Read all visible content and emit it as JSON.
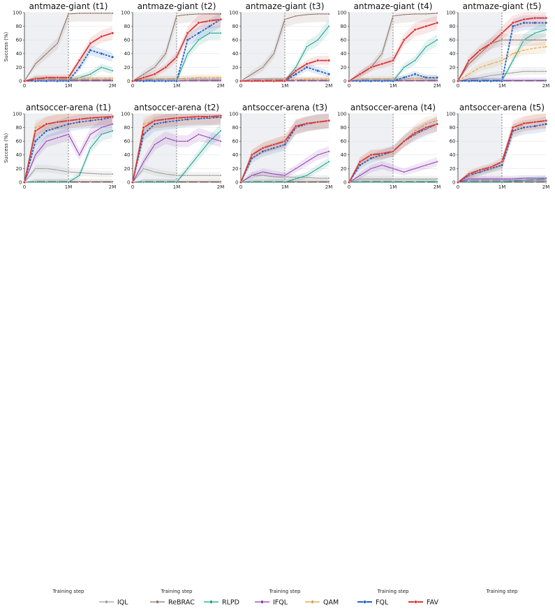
{
  "figure": {
    "ylabel": "Success (%)",
    "xlabel": "Training step",
    "x_ticks": [
      "0",
      "1M",
      "2M"
    ],
    "y_ticks": [
      "0",
      "20",
      "40",
      "60",
      "80",
      "100"
    ]
  },
  "legend": [
    {
      "name": "IQL",
      "color": "#9a9a9a",
      "marker": "dot"
    },
    {
      "name": "ReBRAC",
      "color": "#8c6d62",
      "marker": "square"
    },
    {
      "name": "RLPD",
      "color": "#159a8a",
      "marker": "dot"
    },
    {
      "name": "IFQL",
      "color": "#8a35b0",
      "marker": "triangle"
    },
    {
      "name": "QAM",
      "color": "#e09a3a",
      "marker": "dash"
    },
    {
      "name": "FQL",
      "color": "#1f63c4",
      "marker": "triangle-down"
    },
    {
      "name": "FAV",
      "color": "#d63a3a",
      "marker": "diamond"
    }
  ],
  "chart_data": {
    "type": "line",
    "x": [
      0,
      0.25,
      0.5,
      0.75,
      1.0,
      1.25,
      1.5,
      1.75,
      2.0
    ],
    "x_unit": "M steps",
    "ylim": [
      0,
      100
    ],
    "xlim": [
      0,
      2
    ],
    "panels": [
      {
        "title": "antmaze-giant (t1)",
        "series": {
          "IQL": [
            0,
            5,
            3,
            2,
            2,
            2,
            2,
            2,
            2
          ],
          "ReBRAC": [
            0,
            25,
            40,
            55,
            98,
            99,
            99,
            99,
            99
          ],
          "RLPD": [
            0,
            0,
            0,
            0,
            0,
            5,
            10,
            20,
            15
          ],
          "IFQL": [
            0,
            0,
            0,
            0,
            0,
            1,
            1,
            1,
            1
          ],
          "QAM": [
            0,
            2,
            3,
            3,
            3,
            4,
            4,
            4,
            4
          ],
          "FQL": [
            0,
            0,
            0,
            0,
            0,
            20,
            45,
            40,
            35
          ],
          "FAV": [
            0,
            3,
            5,
            5,
            5,
            30,
            55,
            65,
            70
          ]
        }
      },
      {
        "title": "antmaze-giant (t2)",
        "series": {
          "IQL": [
            0,
            1,
            2,
            3,
            3,
            3,
            3,
            3,
            3
          ],
          "ReBRAC": [
            0,
            10,
            20,
            40,
            95,
            97,
            98,
            98,
            98
          ],
          "RLPD": [
            0,
            0,
            0,
            0,
            0,
            40,
            60,
            70,
            70
          ],
          "IFQL": [
            0,
            0,
            0,
            0,
            0,
            1,
            1,
            1,
            1
          ],
          "QAM": [
            0,
            2,
            3,
            3,
            3,
            4,
            5,
            5,
            5
          ],
          "FQL": [
            0,
            0,
            0,
            0,
            0,
            60,
            70,
            80,
            90
          ],
          "FAV": [
            0,
            5,
            10,
            20,
            35,
            70,
            85,
            88,
            90
          ]
        }
      },
      {
        "title": "antmaze-giant (t3)",
        "series": {
          "IQL": [
            0,
            0,
            0,
            1,
            1,
            1,
            1,
            1,
            1
          ],
          "ReBRAC": [
            0,
            10,
            20,
            40,
            90,
            95,
            97,
            98,
            98
          ],
          "RLPD": [
            0,
            0,
            0,
            0,
            0,
            20,
            50,
            60,
            80
          ],
          "IFQL": [
            0,
            0,
            0,
            0,
            0,
            1,
            1,
            1,
            1
          ],
          "QAM": [
            0,
            1,
            1,
            2,
            2,
            2,
            3,
            3,
            3
          ],
          "FQL": [
            0,
            0,
            0,
            0,
            0,
            10,
            20,
            15,
            10
          ],
          "FAV": [
            0,
            0,
            0,
            0,
            0,
            15,
            25,
            30,
            30
          ]
        }
      },
      {
        "title": "antmaze-giant (t4)",
        "series": {
          "IQL": [
            0,
            1,
            1,
            1,
            1,
            1,
            1,
            1,
            1
          ],
          "ReBRAC": [
            0,
            10,
            20,
            40,
            95,
            97,
            98,
            98,
            99
          ],
          "RLPD": [
            0,
            0,
            0,
            0,
            0,
            20,
            30,
            50,
            60
          ],
          "IFQL": [
            0,
            0,
            0,
            0,
            0,
            1,
            1,
            1,
            1
          ],
          "QAM": [
            0,
            2,
            3,
            3,
            3,
            3,
            4,
            4,
            4
          ],
          "FQL": [
            0,
            0,
            0,
            0,
            0,
            5,
            10,
            5,
            5
          ],
          "FAV": [
            0,
            10,
            20,
            25,
            30,
            60,
            75,
            80,
            85
          ]
        }
      },
      {
        "title": "antmaze-giant (t5)",
        "series": {
          "IQL": [
            0,
            3,
            5,
            8,
            10,
            12,
            14,
            14,
            14
          ],
          "ReBRAC": [
            0,
            25,
            40,
            55,
            60,
            60,
            60,
            60,
            60
          ],
          "RLPD": [
            0,
            0,
            0,
            0,
            0,
            30,
            60,
            70,
            75
          ],
          "IFQL": [
            0,
            1,
            1,
            1,
            1,
            1,
            1,
            1,
            1
          ],
          "QAM": [
            0,
            10,
            20,
            25,
            30,
            40,
            45,
            48,
            50
          ],
          "FQL": [
            0,
            0,
            0,
            0,
            0,
            80,
            85,
            85,
            85
          ],
          "FAV": [
            0,
            30,
            45,
            55,
            70,
            85,
            90,
            92,
            92
          ]
        }
      },
      {
        "title": "antsoccer-arena (t1)",
        "series": {
          "IQL": [
            0,
            20,
            20,
            18,
            15,
            14,
            13,
            12,
            12
          ],
          "ReBRAC": [
            0,
            1,
            1,
            1,
            1,
            1,
            1,
            1,
            1
          ],
          "RLPD": [
            0,
            0,
            0,
            0,
            0,
            10,
            50,
            70,
            75
          ],
          "IFQL": [
            0,
            40,
            60,
            65,
            70,
            40,
            70,
            80,
            85
          ],
          "QAM": [
            0,
            80,
            85,
            88,
            90,
            92,
            93,
            94,
            95
          ],
          "FQL": [
            0,
            60,
            75,
            80,
            85,
            88,
            90,
            92,
            95
          ],
          "FAV": [
            0,
            75,
            85,
            88,
            90,
            92,
            94,
            95,
            96
          ]
        }
      },
      {
        "title": "antsoccer-arena (t2)",
        "series": {
          "IQL": [
            0,
            20,
            15,
            12,
            10,
            10,
            10,
            10,
            10
          ],
          "ReBRAC": [
            0,
            1,
            1,
            1,
            1,
            1,
            1,
            1,
            1
          ],
          "RLPD": [
            0,
            0,
            0,
            0,
            0,
            20,
            40,
            60,
            75
          ],
          "IFQL": [
            0,
            30,
            55,
            65,
            60,
            60,
            70,
            65,
            60
          ],
          "QAM": [
            0,
            85,
            90,
            92,
            93,
            94,
            95,
            95,
            95
          ],
          "FQL": [
            0,
            70,
            85,
            88,
            90,
            92,
            93,
            94,
            95
          ],
          "FAV": [
            0,
            80,
            90,
            92,
            94,
            95,
            96,
            96,
            97
          ]
        }
      },
      {
        "title": "antsoccer-arena (t3)",
        "series": {
          "IQL": [
            0,
            10,
            10,
            8,
            8,
            7,
            7,
            6,
            6
          ],
          "ReBRAC": [
            0,
            1,
            1,
            1,
            1,
            1,
            1,
            1,
            1
          ],
          "RLPD": [
            0,
            0,
            0,
            0,
            0,
            5,
            10,
            20,
            30
          ],
          "IFQL": [
            0,
            10,
            15,
            12,
            10,
            20,
            30,
            40,
            45
          ],
          "QAM": [
            0,
            40,
            50,
            55,
            60,
            80,
            85,
            88,
            90
          ],
          "FQL": [
            0,
            35,
            45,
            50,
            55,
            80,
            85,
            88,
            90
          ],
          "FAV": [
            0,
            40,
            50,
            55,
            60,
            82,
            86,
            88,
            90
          ]
        }
      },
      {
        "title": "antsoccer-arena (t4)",
        "series": {
          "IQL": [
            0,
            5,
            5,
            5,
            5,
            5,
            5,
            5,
            5
          ],
          "ReBRAC": [
            0,
            1,
            1,
            1,
            1,
            1,
            1,
            1,
            1
          ],
          "RLPD": [
            0,
            0,
            0,
            0,
            0,
            0,
            0,
            1,
            1
          ],
          "IFQL": [
            0,
            10,
            20,
            25,
            20,
            15,
            20,
            25,
            30
          ],
          "QAM": [
            0,
            30,
            40,
            40,
            45,
            60,
            75,
            85,
            90
          ],
          "FQL": [
            0,
            25,
            35,
            40,
            45,
            60,
            70,
            78,
            85
          ],
          "FAV": [
            0,
            30,
            40,
            42,
            45,
            60,
            72,
            80,
            85
          ]
        }
      },
      {
        "title": "antsoccer-arena (t5)",
        "series": {
          "IQL": [
            0,
            3,
            3,
            3,
            3,
            3,
            3,
            3,
            3
          ],
          "ReBRAC": [
            0,
            1,
            1,
            1,
            1,
            1,
            1,
            1,
            1
          ],
          "RLPD": [
            0,
            0,
            0,
            0,
            0,
            2,
            3,
            4,
            5
          ],
          "IFQL": [
            0,
            5,
            5,
            5,
            5,
            5,
            6,
            6,
            6
          ],
          "QAM": [
            0,
            10,
            15,
            20,
            25,
            75,
            85,
            88,
            90
          ],
          "FQL": [
            0,
            10,
            15,
            20,
            25,
            75,
            80,
            82,
            85
          ],
          "FAV": [
            0,
            12,
            18,
            22,
            30,
            80,
            86,
            88,
            90
          ]
        }
      }
    ]
  }
}
